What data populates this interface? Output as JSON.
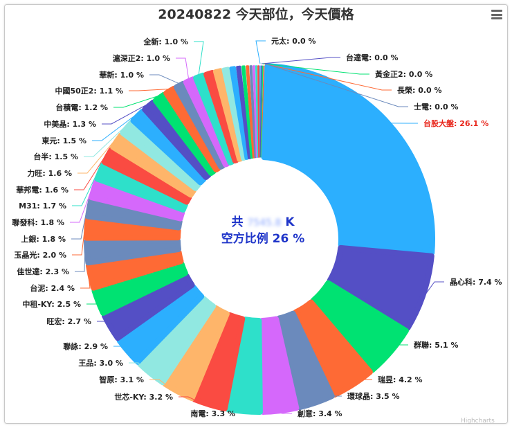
{
  "title": "20240822 今天部位，今天價格",
  "menu_icon": "hamburger-menu-icon",
  "center": {
    "line1_prefix": "共",
    "line1_value": "7545.8",
    "line1_suffix": "K",
    "line2": "空方比例 26 %"
  },
  "credit": "Highcharts",
  "chart_data": {
    "type": "pie",
    "variant": "donut",
    "title": "20240822 今天部位，今天價格",
    "value_unit": "%",
    "highlight_color": "#e8261b",
    "slices": [
      {
        "name": "元太",
        "value": 0.0,
        "color": "#2caffe",
        "label": "元太: 0.0 %"
      },
      {
        "name": "台達電",
        "value": 0.0,
        "color": "#544fc5",
        "label": "台達電: 0.0 %"
      },
      {
        "name": "黃金正2",
        "value": 0.0,
        "color": "#00e272",
        "label": "黃金正2: 0.0 %"
      },
      {
        "name": "長榮",
        "value": 0.0,
        "color": "#fe6a35",
        "label": "長榮: 0.0 %"
      },
      {
        "name": "士電",
        "value": 0.0,
        "color": "#6b8abc",
        "label": "士電: 0.0 %"
      },
      {
        "name": "台股大盤",
        "value": 26.1,
        "color": "#2caffe",
        "label": "台股大盤: 26.1 %",
        "highlight": true
      },
      {
        "name": "晶心科",
        "value": 7.4,
        "color": "#544fc5",
        "label": "晶心科: 7.4 %"
      },
      {
        "name": "群聯",
        "value": 5.1,
        "color": "#00e272",
        "label": "群聯: 5.1 %"
      },
      {
        "name": "瑞昱",
        "value": 4.2,
        "color": "#fe6a35",
        "label": "瑞昱: 4.2 %"
      },
      {
        "name": "環球晶",
        "value": 3.5,
        "color": "#6b8abc",
        "label": "環球晶: 3.5 %"
      },
      {
        "name": "創意",
        "value": 3.4,
        "color": "#d568fb",
        "label": "創意: 3.4 %"
      },
      {
        "name": "南電",
        "value": 3.3,
        "color": "#2ee0ca",
        "label": "南電: 3.3 %"
      },
      {
        "name": "世芯-KY",
        "value": 3.2,
        "color": "#fa4b42",
        "label": "世芯-KY: 3.2 %"
      },
      {
        "name": "智原",
        "value": 3.1,
        "color": "#feb56a",
        "label": "智原: 3.1 %"
      },
      {
        "name": "王品",
        "value": 3.0,
        "color": "#91e8e1",
        "label": "王品: 3.0 %"
      },
      {
        "name": "聯詠",
        "value": 2.9,
        "color": "#2caffe",
        "label": "聯詠: 2.9 %"
      },
      {
        "name": "旺宏",
        "value": 2.7,
        "color": "#544fc5",
        "label": "旺宏: 2.7 %"
      },
      {
        "name": "中租-KY",
        "value": 2.5,
        "color": "#00e272",
        "label": "中租-KY: 2.5 %"
      },
      {
        "name": "台泥",
        "value": 2.4,
        "color": "#fe6a35",
        "label": "台泥: 2.4 %"
      },
      {
        "name": "佳世達",
        "value": 2.3,
        "color": "#6b8abc",
        "label": "佳世達: 2.3 %"
      },
      {
        "name": "玉晶光",
        "value": 2.0,
        "color": "#fe6a35",
        "label": "玉晶光: 2.0 %"
      },
      {
        "name": "上銀",
        "value": 1.8,
        "color": "#6b8abc",
        "label": "上銀: 1.8 %"
      },
      {
        "name": "聯發科",
        "value": 1.8,
        "color": "#d568fb",
        "label": "聯發科: 1.8 %"
      },
      {
        "name": "M31",
        "value": 1.7,
        "color": "#2ee0ca",
        "label": "M31: 1.7 %"
      },
      {
        "name": "華邦電",
        "value": 1.6,
        "color": "#fa4b42",
        "label": "華邦電: 1.6 %"
      },
      {
        "name": "力旺",
        "value": 1.6,
        "color": "#feb56a",
        "label": "力旺: 1.6 %"
      },
      {
        "name": "台半",
        "value": 1.5,
        "color": "#91e8e1",
        "label": "台半: 1.5 %"
      },
      {
        "name": "東元",
        "value": 1.5,
        "color": "#2caffe",
        "label": "東元: 1.5 %"
      },
      {
        "name": "中美晶",
        "value": 1.3,
        "color": "#544fc5",
        "label": "中美晶: 1.3 %"
      },
      {
        "name": "台積電",
        "value": 1.2,
        "color": "#00e272",
        "label": "台積電: 1.2 %"
      },
      {
        "name": "中國50正2",
        "value": 1.1,
        "color": "#fe6a35",
        "label": "中國50正2: 1.1 %"
      },
      {
        "name": "華新",
        "value": 1.0,
        "color": "#6b8abc",
        "label": "華新: 1.0 %"
      },
      {
        "name": "滬深正2",
        "value": 1.0,
        "color": "#d568fb",
        "label": "滬深正2: 1.0 %"
      },
      {
        "name": "全新",
        "value": 1.0,
        "color": "#2ee0ca",
        "label": "全新: 1.0 %"
      },
      {
        "name": "",
        "value": 0.9,
        "color": "#fa4b42"
      },
      {
        "name": "",
        "value": 0.8,
        "color": "#feb56a"
      },
      {
        "name": "",
        "value": 0.7,
        "color": "#91e8e1"
      },
      {
        "name": "",
        "value": 0.6,
        "color": "#2caffe"
      },
      {
        "name": "",
        "value": 0.5,
        "color": "#544fc5"
      },
      {
        "name": "",
        "value": 0.4,
        "color": "#00e272"
      },
      {
        "name": "",
        "value": 0.35,
        "color": "#fe6a35"
      },
      {
        "name": "",
        "value": 0.3,
        "color": "#6b8abc"
      },
      {
        "name": "",
        "value": 0.25,
        "color": "#d568fb"
      },
      {
        "name": "",
        "value": 0.2,
        "color": "#2ee0ca"
      },
      {
        "name": "",
        "value": 0.2,
        "color": "#fa4b42"
      }
    ]
  }
}
